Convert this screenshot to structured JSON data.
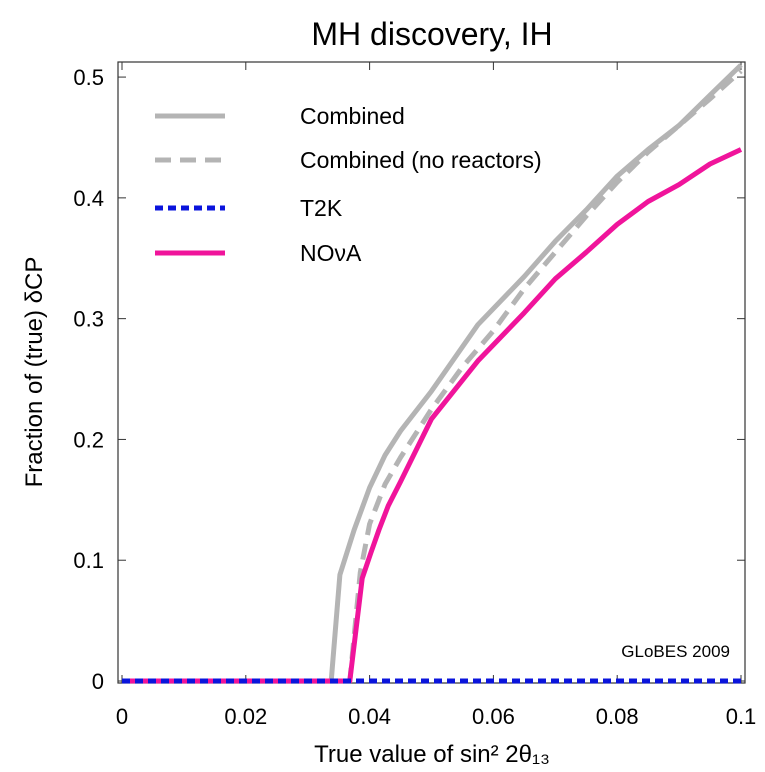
{
  "chart_data": {
    "type": "line",
    "title": "MH discovery, IH",
    "xlabel": "True value of sin² 2θ₁₃",
    "ylabel": "Fraction of (true) δCP",
    "xlim": [
      0,
      0.1
    ],
    "ylim": [
      0,
      0.51
    ],
    "x_ticks": [
      0,
      0.02,
      0.04,
      0.06,
      0.08,
      0.1
    ],
    "x_tick_labels": [
      "0",
      "0.02",
      "0.04",
      "0.06",
      "0.08",
      "0.1"
    ],
    "y_ticks": [
      0,
      0.1,
      0.2,
      0.3,
      0.4,
      0.5
    ],
    "y_tick_labels": [
      "0",
      "0.1",
      "0.2",
      "0.3",
      "0.4",
      "0.5"
    ],
    "grid": false,
    "legend_position": "top-left",
    "annotation": "GLoBES 2009",
    "series": [
      {
        "name": "Combined",
        "color": "#b4b4b4",
        "style": "solid",
        "x": [
          0,
          0.0338,
          0.0352,
          0.0375,
          0.04,
          0.0425,
          0.045,
          0.05,
          0.0575,
          0.065,
          0.07,
          0.075,
          0.08,
          0.085,
          0.09,
          0.095,
          0.1
        ],
        "y": [
          0,
          0,
          0.088,
          0.125,
          0.16,
          0.187,
          0.207,
          0.24,
          0.295,
          0.335,
          0.364,
          0.39,
          0.418,
          0.44,
          0.46,
          0.485,
          0.51
        ]
      },
      {
        "name": "Combined (no reactors)",
        "color": "#b4b4b4",
        "style": "dashed",
        "x": [
          0,
          0.0368,
          0.0385,
          0.04,
          0.0425,
          0.045,
          0.05,
          0.055,
          0.06,
          0.065,
          0.07,
          0.075,
          0.08,
          0.085,
          0.09,
          0.095,
          0.1
        ],
        "y": [
          0,
          0,
          0.09,
          0.13,
          0.163,
          0.185,
          0.225,
          0.26,
          0.29,
          0.325,
          0.355,
          0.385,
          0.413,
          0.438,
          0.46,
          0.482,
          0.505
        ]
      },
      {
        "name": "T2K",
        "color": "#0a14dc",
        "style": "dotted",
        "x": [
          0,
          0.1
        ],
        "y": [
          0,
          0
        ]
      },
      {
        "name": "NOνA",
        "color": "#f0149b",
        "style": "solid",
        "x": [
          0,
          0.0368,
          0.0388,
          0.0402,
          0.0415,
          0.043,
          0.045,
          0.05,
          0.0575,
          0.065,
          0.07,
          0.075,
          0.08,
          0.085,
          0.09,
          0.095,
          0.1
        ],
        "y": [
          0,
          0,
          0.085,
          0.106,
          0.125,
          0.145,
          0.165,
          0.217,
          0.265,
          0.305,
          0.333,
          0.355,
          0.378,
          0.397,
          0.411,
          0.428,
          0.44
        ]
      }
    ]
  }
}
